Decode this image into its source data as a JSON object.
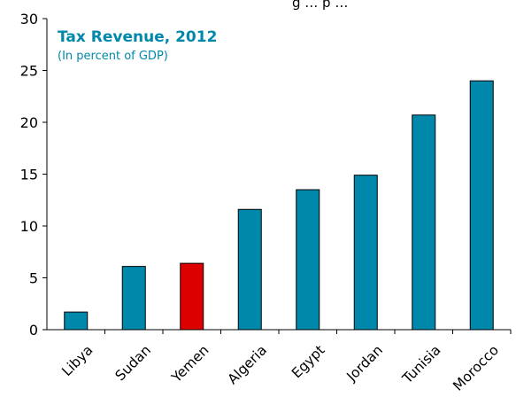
{
  "colors": {
    "bar": "#0088AA",
    "highlight": "#DD0000",
    "title": "#0088AA",
    "axis": "#000000",
    "cropped_text": "#000000"
  },
  "cropped_top_text": "g …  p …",
  "chart_data": {
    "type": "bar",
    "title": "Tax Revenue, 2012",
    "subtitle": "(In percent of GDP)",
    "categories": [
      "Libya",
      "Sudan",
      "Yemen",
      "Algeria",
      "Egypt",
      "Jordan",
      "Tunisia",
      "Morocco"
    ],
    "values": [
      1.7,
      6.1,
      6.4,
      11.6,
      13.5,
      14.9,
      20.7,
      24.0
    ],
    "highlight": "Yemen",
    "ylim": [
      0,
      30
    ],
    "yticks": [
      0,
      5,
      10,
      15,
      20,
      25,
      30
    ],
    "xlabel": "",
    "ylabel": "",
    "grid": false,
    "legend": "none"
  }
}
